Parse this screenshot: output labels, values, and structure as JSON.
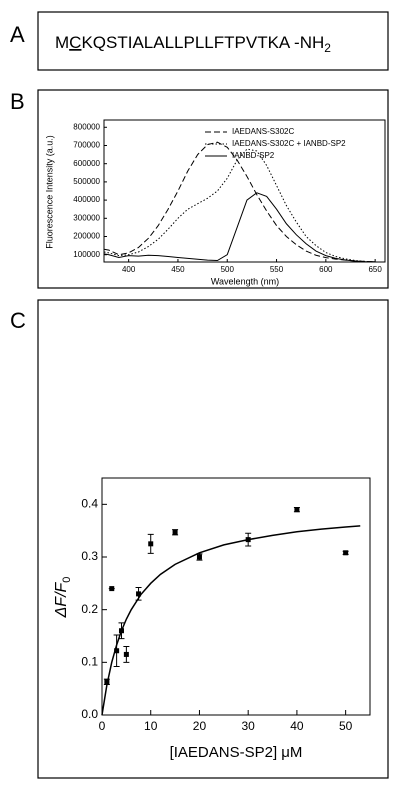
{
  "panels": {
    "a": "A",
    "b": "B",
    "c": "C"
  },
  "sequence": {
    "start": "M",
    "marked": "C",
    "rest": "KQSTIALALLPLLFTPVTKA -NH",
    "subscript": "2"
  },
  "chart_data": [
    {
      "type": "line",
      "xlabel": "Wavelength (nm)",
      "ylabel": "Fluorescence Intensity (a.u.)",
      "x": [
        375,
        380,
        390,
        400,
        410,
        420,
        430,
        440,
        450,
        460,
        470,
        480,
        490,
        500,
        510,
        520,
        530,
        540,
        550,
        560,
        570,
        580,
        590,
        600,
        610,
        620,
        630,
        640,
        650
      ],
      "xlim": [
        375,
        660
      ],
      "ylim": [
        60000,
        840000
      ],
      "xticks": [
        400,
        450,
        500,
        550,
        600,
        650
      ],
      "yticks": [
        100000,
        200000,
        300000,
        400000,
        500000,
        600000,
        700000,
        800000
      ],
      "legend": "upper right",
      "series": [
        {
          "name": "IAEDANS-S302C",
          "color": "#000000",
          "dash": "dashed",
          "values": [
            130000,
            125000,
            100000,
            110000,
            140000,
            190000,
            260000,
            350000,
            450000,
            560000,
            650000,
            705000,
            718000,
            690000,
            620000,
            530000,
            430000,
            340000,
            260000,
            200000,
            155000,
            120000,
            97000,
            84000,
            76000,
            70000,
            66000,
            63000,
            61000
          ]
        },
        {
          "name": "IAEDANS-S302C + IANBD-SP2",
          "color": "#000000",
          "dash": "dotted",
          "values": [
            115000,
            110000,
            95000,
            100000,
            115000,
            145000,
            185000,
            240000,
            300000,
            350000,
            380000,
            410000,
            450000,
            520000,
            620000,
            680000,
            670000,
            590000,
            480000,
            370000,
            280000,
            200000,
            150000,
            112000,
            90000,
            77000,
            68000,
            63000,
            61000
          ]
        },
        {
          "name": "IANBD-SP2",
          "color": "#000000",
          "dash": "solid",
          "values": [
            105000,
            100000,
            85000,
            95000,
            92000,
            97000,
            95000,
            90000,
            85000,
            80000,
            75000,
            70000,
            68000,
            100000,
            250000,
            400000,
            440000,
            420000,
            350000,
            270000,
            210000,
            160000,
            120000,
            95000,
            80000,
            71000,
            65000,
            62000,
            61000
          ]
        }
      ]
    },
    {
      "type": "scatter",
      "xlabel": "[IAEDANS-SP2] μM",
      "ylabel": "ΔF/F",
      "ylabel_subscript": "0",
      "xlim": [
        0,
        55
      ],
      "ylim": [
        0,
        0.45
      ],
      "xticks": [
        0,
        10,
        20,
        30,
        40,
        50
      ],
      "yticks": [
        {
          "value": 0,
          "label": "0.0"
        },
        0.1,
        0.2,
        0.3,
        0.4
      ],
      "series": [
        {
          "color": "#000000",
          "marker": "square",
          "x": [
            1,
            2,
            3,
            4,
            5,
            7.5,
            10,
            15,
            20,
            30,
            40,
            50
          ],
          "values": [
            0.063,
            0.24,
            0.122,
            0.16,
            0.115,
            0.23,
            0.325,
            0.347,
            0.3,
            0.333,
            0.39,
            0.308
          ],
          "errors": [
            0.005,
            0,
            0.03,
            0.015,
            0.015,
            0.012,
            0.018,
            0.005,
            0.006,
            0.012,
            0.004,
            0.003
          ]
        },
        {
          "color": "#000000",
          "marker": "none",
          "x": [
            0,
            1,
            2,
            3,
            4,
            5,
            6,
            8,
            10,
            12,
            15,
            20,
            25,
            30,
            35,
            40,
            45,
            50,
            53
          ],
          "values": [
            0,
            0.057,
            0.1,
            0.133,
            0.16,
            0.182,
            0.2,
            0.229,
            0.25,
            0.267,
            0.286,
            0.308,
            0.323,
            0.333,
            0.341,
            0.348,
            0.353,
            0.357,
            0.359
          ]
        }
      ]
    }
  ]
}
